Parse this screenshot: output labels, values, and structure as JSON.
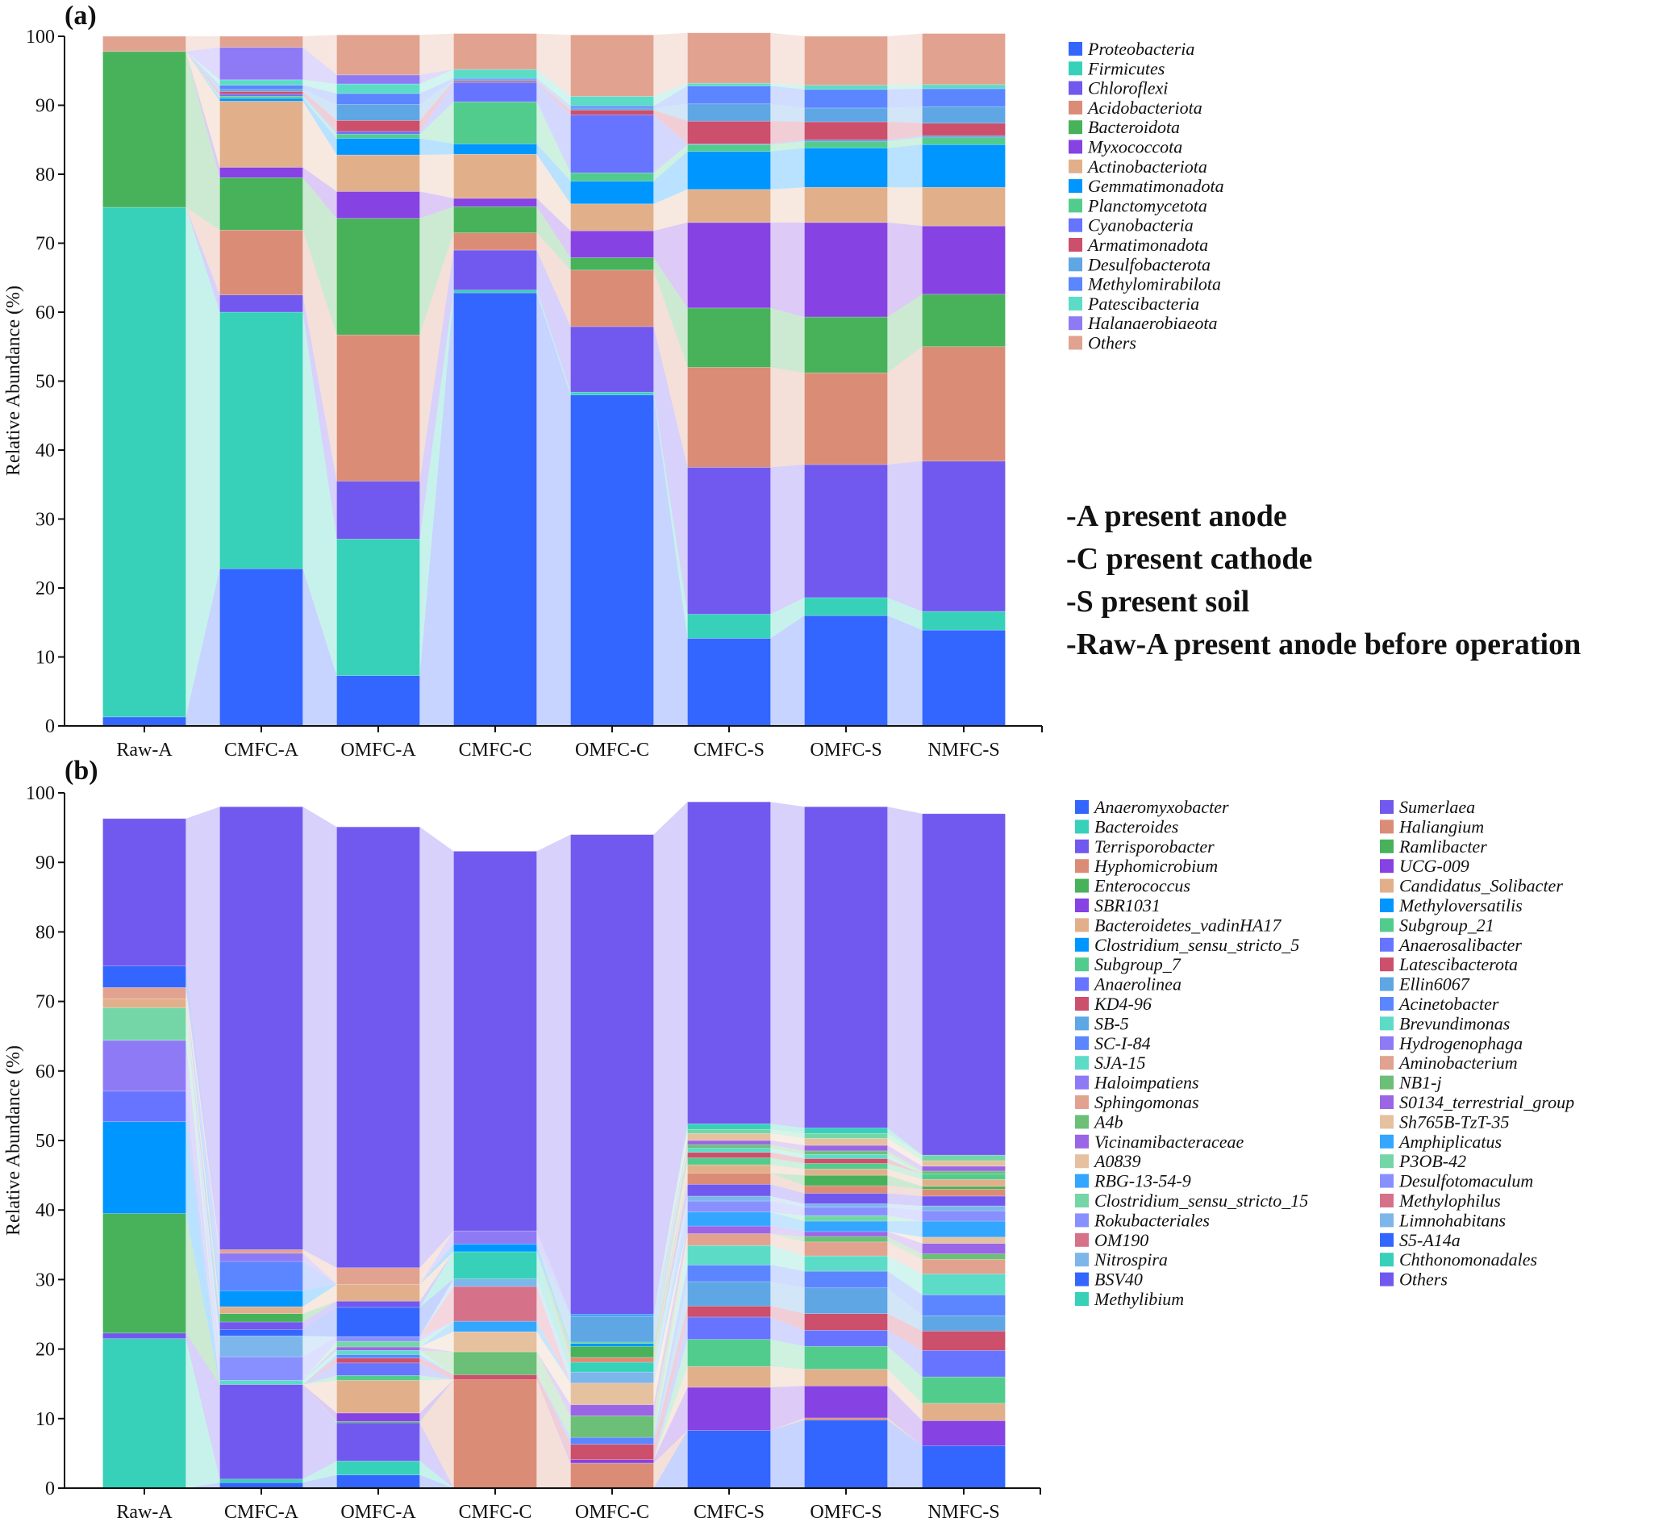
{
  "notes": [
    "-A present anode",
    "-C present cathode",
    "-S present soil",
    "-Raw-A present anode before operation"
  ],
  "chart_data": [
    {
      "panel": "(a)",
      "type": "bar",
      "stacked": true,
      "flow_connectors": true,
      "title": "",
      "xlabel": "",
      "ylabel": "Relative Abundance (%)",
      "ylim": [
        0,
        100
      ],
      "yticks": [
        0,
        10,
        20,
        30,
        40,
        50,
        60,
        70,
        80,
        90,
        100
      ],
      "legend_position": "right",
      "categories": [
        "Raw-A",
        "CMFC-A",
        "OMFC-A",
        "CMFC-C",
        "OMFC-C",
        "CMFC-S",
        "OMFC-S",
        "NMFC-S"
      ],
      "series": [
        {
          "name": "Proteobacteria",
          "color": "#3366ff",
          "values": [
            1.3,
            22.8,
            7.3,
            62.8,
            48.0,
            12.7,
            16.0,
            13.9
          ]
        },
        {
          "name": "Firmicutes",
          "color": "#36d1b8",
          "values": [
            73.9,
            37.2,
            19.8,
            0.4,
            0.4,
            3.5,
            2.6,
            2.7
          ]
        },
        {
          "name": "Chloroflexi",
          "color": "#7159ef",
          "values": [
            0.0,
            2.5,
            8.4,
            5.8,
            9.5,
            21.3,
            19.3,
            21.8
          ]
        },
        {
          "name": "Acidobacteriota",
          "color": "#db8c77",
          "values": [
            0.0,
            9.4,
            21.2,
            2.5,
            8.2,
            14.5,
            13.3,
            16.6
          ]
        },
        {
          "name": "Bacteroidota",
          "color": "#47b25a",
          "values": [
            22.6,
            7.6,
            16.9,
            3.8,
            1.8,
            8.6,
            8.1,
            7.6
          ]
        },
        {
          "name": "Myxococcota",
          "color": "#8642e3",
          "values": [
            0.0,
            1.5,
            3.9,
            1.2,
            3.9,
            12.4,
            13.7,
            9.9
          ]
        },
        {
          "name": "Actinobacteriota",
          "color": "#e1b08b",
          "values": [
            0.0,
            9.6,
            5.3,
            6.4,
            3.9,
            4.8,
            5.1,
            5.6
          ]
        },
        {
          "name": "Gemmatimonadota",
          "color": "#0096ff",
          "values": [
            0.0,
            0.4,
            2.4,
            1.5,
            3.3,
            5.5,
            5.7,
            6.2
          ]
        },
        {
          "name": "Planctomycetota",
          "color": "#52cc8d",
          "values": [
            0.0,
            0.3,
            0.6,
            6.1,
            1.2,
            1.0,
            1.0,
            1.1
          ]
        },
        {
          "name": "Cyanobacteria",
          "color": "#6674ff",
          "values": [
            0.0,
            0.3,
            0.4,
            2.8,
            8.4,
            0.1,
            0.2,
            0.2
          ]
        },
        {
          "name": "Armatimonadota",
          "color": "#cc4f6b",
          "values": [
            0.0,
            0.4,
            1.6,
            0.2,
            0.7,
            3.3,
            2.6,
            1.8
          ]
        },
        {
          "name": "Desulfobacterota",
          "color": "#5ea6e4",
          "values": [
            0.0,
            0.3,
            2.3,
            0.2,
            0.3,
            2.5,
            2.0,
            2.4
          ]
        },
        {
          "name": "Methylomirabilota",
          "color": "#5b86ff",
          "values": [
            0.0,
            0.6,
            1.6,
            0.2,
            0.3,
            2.6,
            2.7,
            2.6
          ]
        },
        {
          "name": "Patescibacteria",
          "color": "#5cdcc7",
          "values": [
            0.0,
            0.8,
            1.4,
            1.3,
            1.4,
            0.4,
            0.6,
            0.6
          ]
        },
        {
          "name": "Halanaerobiaeota",
          "color": "#8f7af5",
          "values": [
            0.0,
            4.7,
            1.3,
            0.0,
            0.0,
            0.0,
            0.0,
            0.0
          ]
        },
        {
          "name": "Others",
          "color": "#e2a290",
          "values": [
            2.2,
            1.6,
            5.8,
            5.2,
            8.9,
            7.3,
            7.1,
            7.4
          ]
        }
      ]
    },
    {
      "panel": "(b)",
      "type": "bar",
      "stacked": true,
      "flow_connectors": true,
      "title": "",
      "xlabel": "",
      "ylabel": "Relative Abundance (%)",
      "ylim": [
        0,
        100
      ],
      "yticks": [
        0,
        10,
        20,
        30,
        40,
        50,
        60,
        70,
        80,
        90,
        100
      ],
      "legend_position": "right",
      "legend_columns": 2,
      "categories": [
        "Raw-A",
        "CMFC-A",
        "OMFC-A",
        "CMFC-C",
        "OMFC-C",
        "CMFC-S",
        "OMFC-S",
        "NMFC-S"
      ],
      "series": [
        {
          "name": "Anaeromyxobacter",
          "color": "#3366ff",
          "values": [
            0.0,
            0.8,
            1.9,
            0.0,
            0.0,
            8.3,
            9.8,
            6.1
          ]
        },
        {
          "name": "Bacteroides",
          "color": "#36d1b8",
          "values": [
            21.5,
            0.5,
            2.0,
            0.0,
            0.0,
            0.0,
            0.0,
            0.0
          ]
        },
        {
          "name": "Terrisporobacter",
          "color": "#7159ef",
          "values": [
            0.8,
            13.6,
            5.5,
            0.0,
            0.0,
            0.0,
            0.0,
            0.0
          ]
        },
        {
          "name": "Hyphomicrobium",
          "color": "#db8c77",
          "values": [
            0.0,
            0.0,
            0.0,
            15.6,
            3.6,
            0.0,
            0.3,
            0.0
          ]
        },
        {
          "name": "Enterococcus",
          "color": "#47b25a",
          "values": [
            17.2,
            0.0,
            0.2,
            0.0,
            0.0,
            0.0,
            0.0,
            0.0
          ]
        },
        {
          "name": "SBR1031",
          "color": "#8642e3",
          "values": [
            0.0,
            0.0,
            1.2,
            0.0,
            0.5,
            6.2,
            4.6,
            3.6
          ]
        },
        {
          "name": "Bacteroidetes_vadinHA17",
          "color": "#e1b08b",
          "values": [
            0.0,
            0.0,
            4.7,
            0.0,
            0.0,
            3.0,
            2.4,
            2.5
          ]
        },
        {
          "name": "Clostridium_sensu_stricto_5",
          "color": "#0096ff",
          "values": [
            13.2,
            0.0,
            0.0,
            0.0,
            0.0,
            0.0,
            0.0,
            0.0
          ]
        },
        {
          "name": "Subgroup_7",
          "color": "#52cc8d",
          "values": [
            0.0,
            0.0,
            0.7,
            0.0,
            0.0,
            3.9,
            3.3,
            3.8
          ]
        },
        {
          "name": "Anaerolinea",
          "color": "#6674ff",
          "values": [
            4.4,
            0.0,
            1.8,
            0.0,
            0.0,
            3.2,
            2.3,
            3.8
          ]
        },
        {
          "name": "KD4-96",
          "color": "#cc4f6b",
          "values": [
            0.0,
            0.0,
            0.7,
            0.7,
            2.2,
            1.6,
            2.4,
            2.8
          ]
        },
        {
          "name": "SB-5",
          "color": "#5ea6e4",
          "values": [
            0.0,
            0.0,
            0.0,
            0.0,
            0.0,
            3.5,
            3.7,
            2.2
          ]
        },
        {
          "name": "SC-I-84",
          "color": "#5b86ff",
          "values": [
            0.0,
            0.0,
            0.5,
            0.0,
            1.0,
            2.4,
            2.4,
            3.0
          ]
        },
        {
          "name": "SJA-15",
          "color": "#5cdcc7",
          "values": [
            0.0,
            0.6,
            0.6,
            0.0,
            0.0,
            2.8,
            2.2,
            3.0
          ]
        },
        {
          "name": "Haloimpatiens",
          "color": "#8f7af5",
          "values": [
            7.3,
            0.0,
            0.0,
            0.0,
            0.0,
            0.0,
            0.0,
            0.0
          ]
        },
        {
          "name": "Sphingomonas",
          "color": "#e2a290",
          "values": [
            0.0,
            0.0,
            0.0,
            0.0,
            0.0,
            1.7,
            2.0,
            2.1
          ]
        },
        {
          "name": "A4b",
          "color": "#6bbf76",
          "values": [
            0.0,
            0.0,
            0.0,
            3.3,
            3.1,
            0.0,
            0.8,
            0.8
          ]
        },
        {
          "name": "Vicinamibacteraceae",
          "color": "#9a66e6",
          "values": [
            0.0,
            0.0,
            0.5,
            0.0,
            1.6,
            1.1,
            0.7,
            1.5
          ]
        },
        {
          "name": "A0839",
          "color": "#e6c1a0",
          "values": [
            0.0,
            0.0,
            0.0,
            2.9,
            3.1,
            0.0,
            0.0,
            0.9
          ]
        },
        {
          "name": "RBG-13-54-9",
          "color": "#33a6ff",
          "values": [
            0.0,
            0.0,
            0.0,
            1.5,
            0.0,
            2.0,
            1.5,
            2.3
          ]
        },
        {
          "name": "Clostridium_sensu_stricto_15",
          "color": "#74d6a6",
          "values": [
            4.7,
            0.0,
            0.8,
            0.0,
            0.0,
            0.0,
            0.8,
            0.0
          ]
        },
        {
          "name": "Rokubacteriales",
          "color": "#8890ff",
          "values": [
            0.0,
            3.4,
            0.7,
            0.0,
            0.0,
            1.6,
            1.2,
            1.5
          ]
        },
        {
          "name": "OM190",
          "color": "#d6718a",
          "values": [
            0.0,
            0.0,
            0.0,
            5.0,
            0.0,
            0.0,
            0.0,
            0.0
          ]
        },
        {
          "name": "Nitrospira",
          "color": "#7db6ea",
          "values": [
            0.0,
            3.0,
            0.0,
            1.1,
            1.6,
            0.7,
            0.5,
            0.7
          ]
        },
        {
          "name": "BSV40",
          "color": "#3366ff",
          "values": [
            0.0,
            0.9,
            4.2,
            0.0,
            0.0,
            0.0,
            0.0,
            0.0
          ]
        },
        {
          "name": "Methylibium",
          "color": "#36d1b8",
          "values": [
            0.0,
            0.0,
            0.0,
            3.9,
            1.4,
            0.0,
            0.0,
            0.0
          ]
        },
        {
          "name": "Sumerlaea",
          "color": "#7159ef",
          "values": [
            0.0,
            1.1,
            0.9,
            0.0,
            0.0,
            1.7,
            1.5,
            1.4
          ]
        },
        {
          "name": "Haliangium",
          "color": "#db8c77",
          "values": [
            0.0,
            0.0,
            0.0,
            0.0,
            0.7,
            1.6,
            1.1,
            1.0
          ]
        },
        {
          "name": "Ramlibacter",
          "color": "#47b25a",
          "values": [
            0.0,
            1.2,
            0.0,
            0.0,
            1.6,
            0.0,
            1.5,
            0.4
          ]
        },
        {
          "name": "UCG-009",
          "color": "#8642e3",
          "values": [
            0.0,
            0.0,
            0.0,
            0.0,
            0.0,
            0.0,
            0.0,
            0.0
          ]
        },
        {
          "name": "Candidatus_Solibacter",
          "color": "#e1b08b",
          "values": [
            1.3,
            1.0,
            2.4,
            0.0,
            0.0,
            1.2,
            0.9,
            1.0
          ]
        },
        {
          "name": "Methyloversatilis",
          "color": "#0096ff",
          "values": [
            0.0,
            2.3,
            0.0,
            1.1,
            0.4,
            0.0,
            0.0,
            0.0
          ]
        },
        {
          "name": "Subgroup_21",
          "color": "#52cc8d",
          "values": [
            0.0,
            0.0,
            0.0,
            0.0,
            0.2,
            1.0,
            0.8,
            0.8
          ]
        },
        {
          "name": "Anaerosalibacter",
          "color": "#6674ff",
          "values": [
            0.0,
            0.0,
            0.0,
            0.0,
            0.0,
            0.0,
            0.0,
            0.0
          ]
        },
        {
          "name": "Latescibacterota",
          "color": "#cc4f6b",
          "values": [
            0.0,
            0.0,
            0.0,
            0.0,
            0.0,
            0.8,
            0.7,
            0.0
          ]
        },
        {
          "name": "Ellin6067",
          "color": "#5ea6e4",
          "values": [
            0.0,
            0.0,
            0.0,
            0.0,
            3.7,
            0.0,
            0.0,
            0.0
          ]
        },
        {
          "name": "Acinetobacter",
          "color": "#5b86ff",
          "values": [
            0.0,
            4.2,
            0.0,
            0.0,
            0.0,
            0.0,
            0.0,
            0.0
          ]
        },
        {
          "name": "Brevundimonas",
          "color": "#5cdcc7",
          "values": [
            0.0,
            0.0,
            0.0,
            0.0,
            0.0,
            0.6,
            0.6,
            0.0
          ]
        },
        {
          "name": "Hydrogenophaga",
          "color": "#8f7af5",
          "values": [
            0.0,
            1.2,
            0.0,
            1.9,
            0.0,
            0.0,
            0.0,
            0.0
          ]
        },
        {
          "name": "Aminobacterium",
          "color": "#e2a290",
          "values": [
            1.6,
            0.5,
            2.4,
            0.0,
            0.0,
            0.0,
            0.0,
            0.0
          ]
        },
        {
          "name": "NB1-j",
          "color": "#6bbf76",
          "values": [
            0.0,
            0.0,
            0.0,
            0.0,
            0.0,
            0.5,
            0.5,
            0.4
          ]
        },
        {
          "name": "S0134_terrestrial_group",
          "color": "#9a66e6",
          "values": [
            0.0,
            0.0,
            0.0,
            0.0,
            0.0,
            0.6,
            0.8,
            0.7
          ]
        },
        {
          "name": "Sh765B-TzT-35",
          "color": "#e6c1a0",
          "values": [
            0.0,
            0.0,
            0.0,
            0.0,
            0.0,
            1.0,
            1.0,
            0.8
          ]
        },
        {
          "name": "Amphiplicatus",
          "color": "#33a6ff",
          "values": [
            0.0,
            0.0,
            0.0,
            0.0,
            0.3,
            0.0,
            0.0,
            0.0
          ]
        },
        {
          "name": "P3OB-42",
          "color": "#74d6a6",
          "values": [
            0.0,
            0.0,
            0.0,
            0.0,
            0.0,
            0.6,
            0.7,
            0.8
          ]
        },
        {
          "name": "Desulfotomaculum",
          "color": "#8890ff",
          "values": [
            0.0,
            0.0,
            0.0,
            0.0,
            0.0,
            0.0,
            0.0,
            0.0
          ]
        },
        {
          "name": "Methylophilus",
          "color": "#d6718a",
          "values": [
            0.0,
            0.0,
            0.0,
            0.0,
            0.0,
            0.0,
            0.0,
            0.0
          ]
        },
        {
          "name": "Limnohabitans",
          "color": "#7db6ea",
          "values": [
            0.0,
            0.0,
            0.0,
            0.0,
            0.0,
            0.0,
            0.0,
            0.0
          ]
        },
        {
          "name": "S5-A14a",
          "color": "#3366ff",
          "values": [
            3.1,
            0.0,
            0.0,
            0.0,
            0.0,
            0.0,
            0.0,
            0.0
          ]
        },
        {
          "name": "Chthonomonadales",
          "color": "#36d1b8",
          "values": [
            0.0,
            0.0,
            0.0,
            0.0,
            0.0,
            0.8,
            0.8,
            0.0
          ]
        },
        {
          "name": "Others",
          "color": "#7159ef",
          "values": [
            21.2,
            63.7,
            63.4,
            54.6,
            69.0,
            46.3,
            46.2,
            49.1
          ]
        }
      ]
    }
  ]
}
